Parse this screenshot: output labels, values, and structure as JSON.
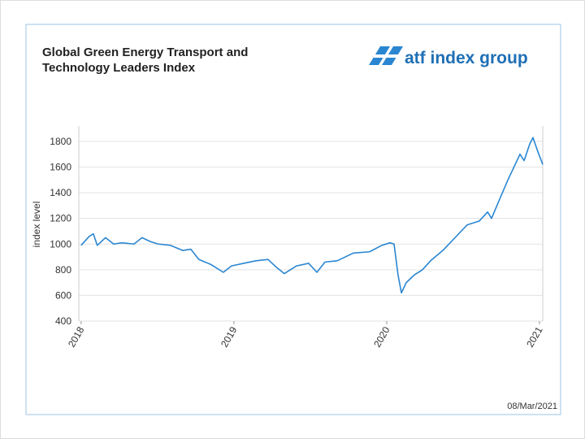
{
  "chart_data": {
    "type": "line",
    "title": [
      "Global Green Energy Transport and",
      "Technology Leaders Index"
    ],
    "logo": "atf index group",
    "date": "08/Mar/2021",
    "ylabel": "index level",
    "x": [
      2018.0,
      2018.053,
      2018.08,
      2018.106,
      2018.16,
      2018.213,
      2018.266,
      2018.346,
      2018.399,
      2018.452,
      2018.505,
      2018.585,
      2018.665,
      2018.718,
      2018.771,
      2018.851,
      2018.931,
      2018.984,
      2019.064,
      2019.144,
      2019.223,
      2019.277,
      2019.33,
      2019.41,
      2019.489,
      2019.543,
      2019.596,
      2019.676,
      2019.782,
      2019.888,
      2019.968,
      2020.021,
      2020.048,
      2020.074,
      2020.096,
      2020.128,
      2020.181,
      2020.234,
      2020.287,
      2020.367,
      2020.447,
      2020.527,
      2020.606,
      2020.66,
      2020.686,
      2020.739,
      2020.793,
      2020.872,
      2020.899,
      2020.936,
      2020.957,
      2020.989,
      2021.021
    ],
    "series": [
      {
        "color": "#2a86d1",
        "values": [
          990,
          1060,
          1080,
          990,
          1050,
          1000,
          1010,
          1000,
          1050,
          1020,
          1000,
          990,
          950,
          960,
          880,
          840,
          780,
          830,
          850,
          870,
          880,
          820,
          770,
          830,
          850,
          780,
          860,
          870,
          930,
          940,
          990,
          1010,
          1000,
          760,
          620,
          700,
          760,
          800,
          870,
          950,
          1050,
          1150,
          1180,
          1250,
          1200,
          1350,
          1500,
          1700,
          1650,
          1780,
          1830,
          1720,
          1620
        ]
      }
    ],
    "xlim": [
      2017.985,
      2021.021
    ],
    "xticks": [
      2018,
      2019,
      2020,
      2021
    ],
    "ylim": [
      400,
      1920
    ],
    "yticks": [
      400,
      600,
      800,
      1000,
      1200,
      1400,
      1600,
      1800
    ],
    "grid": true
  }
}
